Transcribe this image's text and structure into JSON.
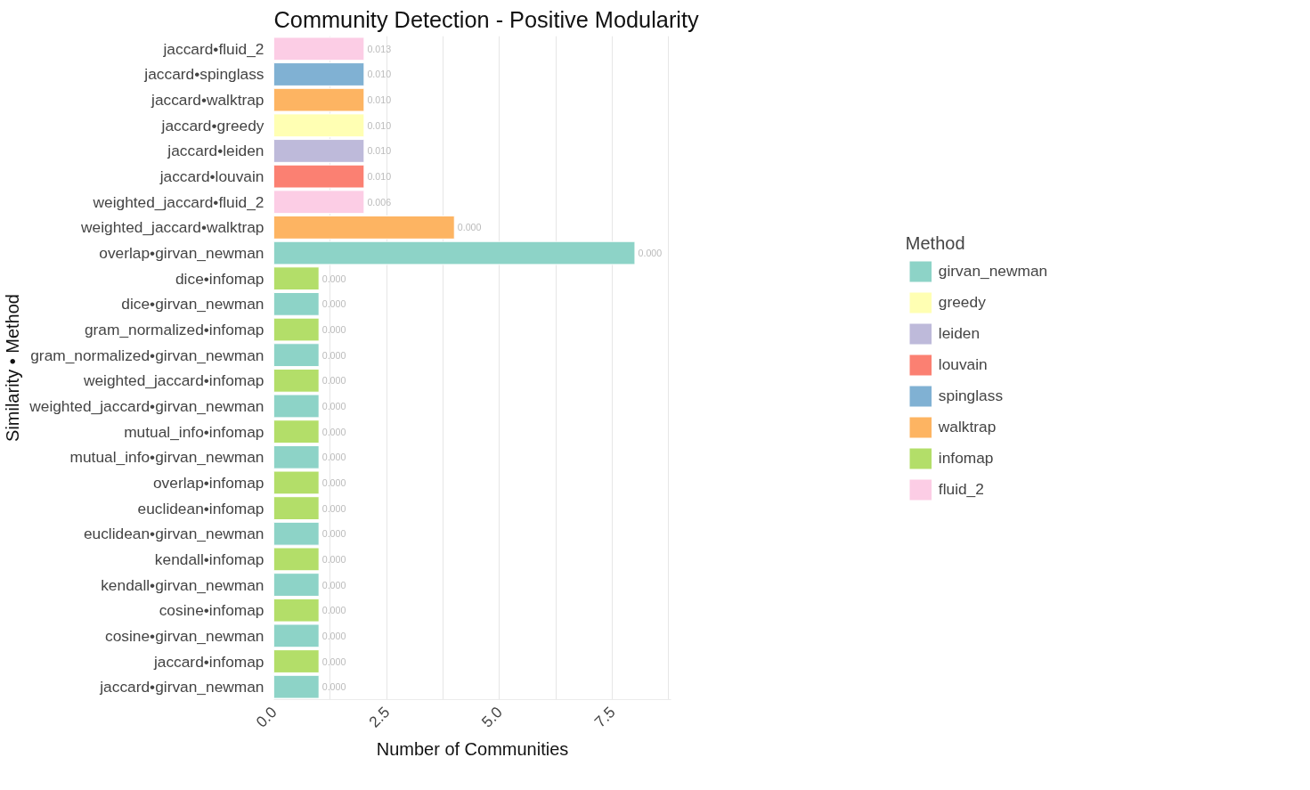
{
  "chart_data": {
    "type": "bar",
    "orientation": "horizontal",
    "title": "Community Detection - Positive Modularity",
    "xlabel": "Number of Communities",
    "ylabel": "Similarity • Method",
    "legend_title": "Method",
    "legend": "right",
    "grid": "x",
    "categories": [
      "jaccard•fluid_2",
      "jaccard•spinglass",
      "jaccard•walktrap",
      "jaccard•greedy",
      "jaccard•leiden",
      "jaccard•louvain",
      "weighted_jaccard•fluid_2",
      "weighted_jaccard•walktrap",
      "overlap•girvan_newman",
      "dice•infomap",
      "dice•girvan_newman",
      "gram_normalized•infomap",
      "gram_normalized•girvan_newman",
      "weighted_jaccard•infomap",
      "weighted_jaccard•girvan_newman",
      "mutual_info•infomap",
      "mutual_info•girvan_newman",
      "overlap•infomap",
      "euclidean•infomap",
      "euclidean•girvan_newman",
      "kendall•infomap",
      "kendall•girvan_newman",
      "cosine•infomap",
      "cosine•girvan_newman",
      "jaccard•infomap",
      "jaccard•girvan_newman"
    ],
    "xlim": [
      0,
      8.8
    ],
    "xticks": [
      {
        "value": 0,
        "label": "0.0"
      },
      {
        "value": 1.25,
        "label": null
      },
      {
        "value": 2.5,
        "label": "2.5"
      },
      {
        "value": 3.75,
        "label": null
      },
      {
        "value": 5,
        "label": "5.0"
      },
      {
        "value": 6.25,
        "label": null
      },
      {
        "value": 7.5,
        "label": "7.5"
      },
      {
        "value": 8.75,
        "label": null
      }
    ],
    "series": [
      {
        "name": "girvan_newman",
        "color": "#8dd3c7",
        "values": [
          null,
          null,
          null,
          null,
          null,
          null,
          null,
          null,
          8,
          null,
          1,
          null,
          1,
          null,
          1,
          null,
          1,
          null,
          null,
          1,
          null,
          1,
          null,
          1,
          null,
          1
        ]
      },
      {
        "name": "greedy",
        "color": "#ffffb3",
        "values": [
          null,
          null,
          null,
          2,
          null,
          null,
          null,
          null,
          null,
          null,
          null,
          null,
          null,
          null,
          null,
          null,
          null,
          null,
          null,
          null,
          null,
          null,
          null,
          null,
          null,
          null
        ]
      },
      {
        "name": "leiden",
        "color": "#bebada",
        "values": [
          null,
          null,
          null,
          null,
          2,
          null,
          null,
          null,
          null,
          null,
          null,
          null,
          null,
          null,
          null,
          null,
          null,
          null,
          null,
          null,
          null,
          null,
          null,
          null,
          null,
          null
        ]
      },
      {
        "name": "louvain",
        "color": "#fb8072",
        "values": [
          null,
          null,
          null,
          null,
          null,
          2,
          null,
          null,
          null,
          null,
          null,
          null,
          null,
          null,
          null,
          null,
          null,
          null,
          null,
          null,
          null,
          null,
          null,
          null,
          null,
          null
        ]
      },
      {
        "name": "spinglass",
        "color": "#80b1d3",
        "values": [
          null,
          2,
          null,
          null,
          null,
          null,
          null,
          null,
          null,
          null,
          null,
          null,
          null,
          null,
          null,
          null,
          null,
          null,
          null,
          null,
          null,
          null,
          null,
          null,
          null,
          null
        ]
      },
      {
        "name": "walktrap",
        "color": "#fdb462",
        "values": [
          null,
          null,
          2,
          null,
          null,
          null,
          null,
          4,
          null,
          null,
          null,
          null,
          null,
          null,
          null,
          null,
          null,
          null,
          null,
          null,
          null,
          null,
          null,
          null,
          null,
          null
        ]
      },
      {
        "name": "infomap",
        "color": "#b3de69",
        "values": [
          null,
          null,
          null,
          null,
          null,
          null,
          null,
          null,
          null,
          1,
          null,
          1,
          null,
          1,
          null,
          1,
          null,
          1,
          1,
          null,
          1,
          null,
          1,
          null,
          1,
          null
        ]
      },
      {
        "name": "fluid_2",
        "color": "#fccde5",
        "values": [
          2,
          null,
          null,
          null,
          null,
          null,
          2,
          null,
          null,
          null,
          null,
          null,
          null,
          null,
          null,
          null,
          null,
          null,
          null,
          null,
          null,
          null,
          null,
          null,
          null,
          null
        ]
      }
    ],
    "annotations": [
      {
        "text": "0.013",
        "x": 2,
        "y": "jaccard•fluid_2"
      },
      {
        "text": "0.010",
        "x": 2,
        "y": "jaccard•spinglass"
      },
      {
        "text": "0.010",
        "x": 2,
        "y": "jaccard•walktrap"
      },
      {
        "text": "0.010",
        "x": 2,
        "y": "jaccard•greedy"
      },
      {
        "text": "0.010",
        "x": 2,
        "y": "jaccard•leiden"
      },
      {
        "text": "0.010",
        "x": 2,
        "y": "jaccard•louvain"
      },
      {
        "text": "0.006",
        "x": 2,
        "y": "weighted_jaccard•fluid_2"
      },
      {
        "text": "0.000",
        "x": 4,
        "y": "weighted_jaccard•walktrap"
      },
      {
        "text": "0.000",
        "x": 8,
        "y": "overlap•girvan_newman"
      },
      {
        "text": "0.000",
        "x": 1,
        "y": "dice•infomap"
      },
      {
        "text": "0.000",
        "x": 1,
        "y": "dice•girvan_newman"
      },
      {
        "text": "0.000",
        "x": 1,
        "y": "gram_normalized•infomap"
      },
      {
        "text": "0.000",
        "x": 1,
        "y": "gram_normalized•girvan_newman"
      },
      {
        "text": "0.000",
        "x": 1,
        "y": "weighted_jaccard•infomap"
      },
      {
        "text": "0.000",
        "x": 1,
        "y": "weighted_jaccard•girvan_newman"
      },
      {
        "text": "0.000",
        "x": 1,
        "y": "mutual_info•infomap"
      },
      {
        "text": "0.000",
        "x": 1,
        "y": "mutual_info•girvan_newman"
      },
      {
        "text": "0.000",
        "x": 1,
        "y": "overlap•infomap"
      },
      {
        "text": "0.000",
        "x": 1,
        "y": "euclidean•infomap"
      },
      {
        "text": "0.000",
        "x": 1,
        "y": "euclidean•girvan_newman"
      },
      {
        "text": "0.000",
        "x": 1,
        "y": "kendall•infomap"
      },
      {
        "text": "0.000",
        "x": 1,
        "y": "kendall•girvan_newman"
      },
      {
        "text": "0.000",
        "x": 1,
        "y": "cosine•infomap"
      },
      {
        "text": "0.000",
        "x": 1,
        "y": "cosine•girvan_newman"
      },
      {
        "text": "0.000",
        "x": 1,
        "y": "jaccard•infomap"
      },
      {
        "text": "0.000",
        "x": 1,
        "y": "jaccard•girvan_newman"
      }
    ]
  }
}
